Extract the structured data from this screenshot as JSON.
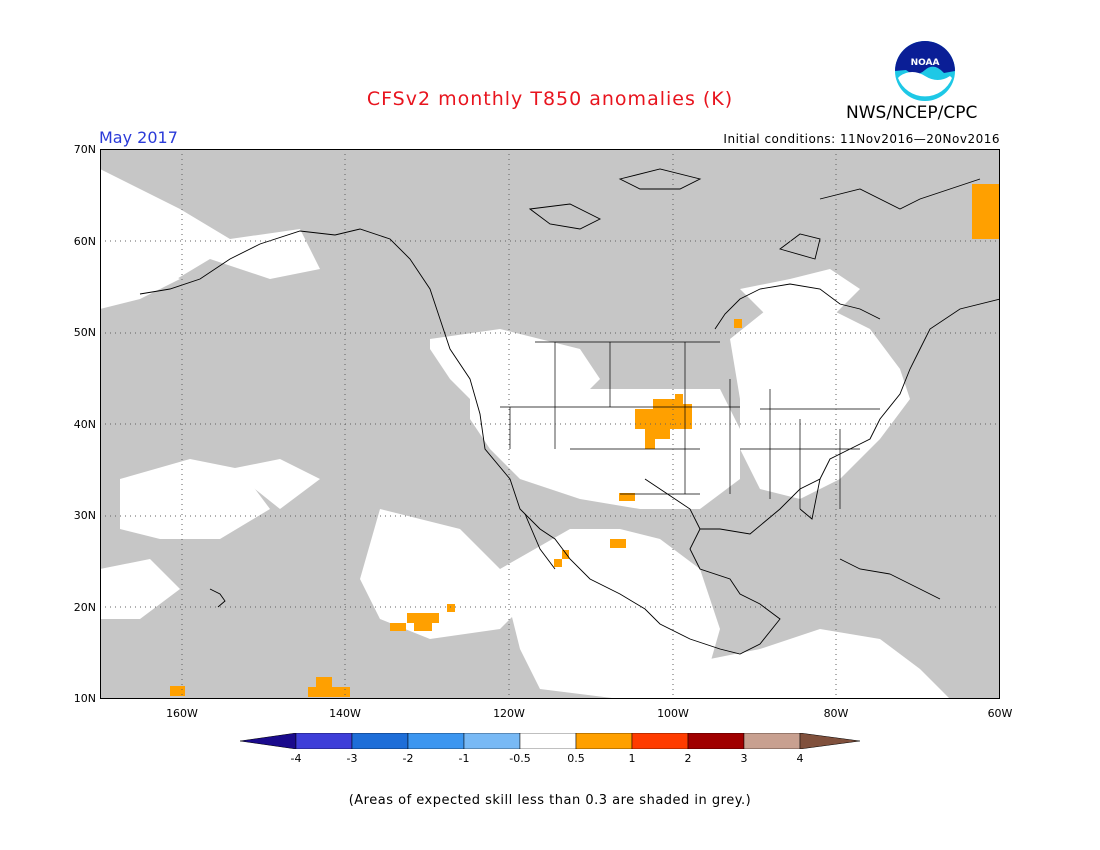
{
  "title": "CFSv2 monthly T850 anomalies (K)",
  "period": "May 2017",
  "initial_conditions": "Initial conditions: 11Nov2016—20Nov2016",
  "agency": "NWS/NCEP/CPC",
  "logo_text": "NOAA",
  "lat_labels": [
    "70N",
    "60N",
    "50N",
    "40N",
    "30N",
    "20N",
    "10N"
  ],
  "lon_labels": [
    "160W",
    "140W",
    "120W",
    "100W",
    "80W",
    "60W"
  ],
  "colorbar": {
    "labels": [
      "-4",
      "-3",
      "-2",
      "-1",
      "-0.5",
      "0.5",
      "1",
      "2",
      "3",
      "4"
    ],
    "colors": [
      "#1a0a8c",
      "#3e3ed8",
      "#1e6ed8",
      "#3c96f0",
      "#78b9f5",
      "#ffffff",
      "#ffa000",
      "#ff3c00",
      "#a00000",
      "#c8a090",
      "#80503c"
    ]
  },
  "grey_color": "#c6c6c6",
  "note": "(Areas of expected skill less than 0.3 are shaded in grey.)"
}
